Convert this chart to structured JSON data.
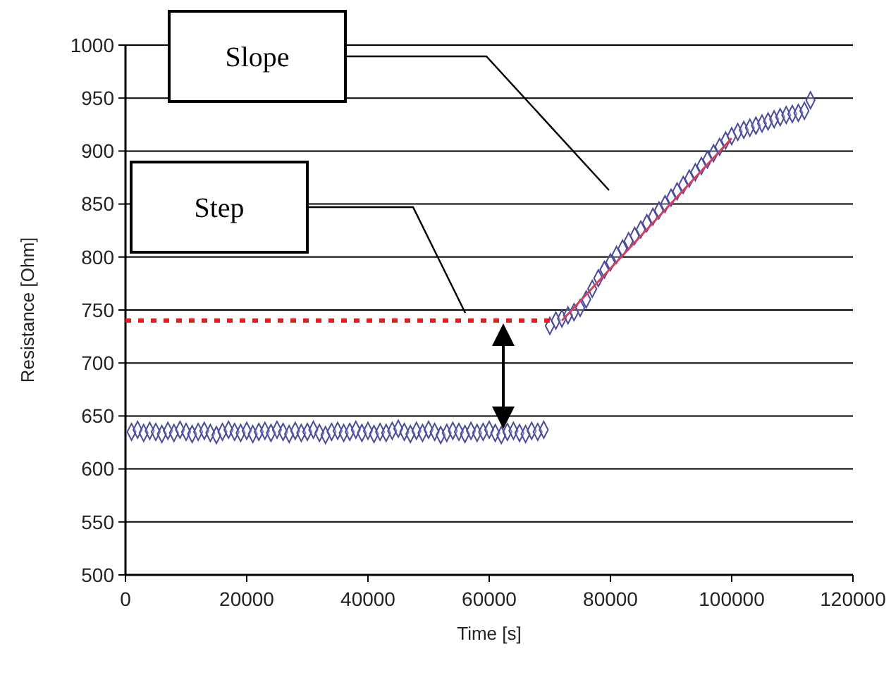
{
  "chart_data": {
    "type": "scatter",
    "xlabel": "Time [s]",
    "ylabel": "Resistance [Ohm]",
    "xlim": [
      0,
      120000
    ],
    "xticks": [
      0,
      20000,
      40000,
      60000,
      80000,
      100000,
      120000
    ],
    "ylim": [
      500,
      1000
    ],
    "yticks": [
      500,
      550,
      600,
      650,
      700,
      750,
      800,
      850,
      900,
      950,
      1000
    ],
    "grid": "y",
    "series": [
      {
        "color": "#4b4b9c",
        "marker": "diamond",
        "x": [
          1000,
          2000,
          3000,
          4000,
          5000,
          6000,
          7000,
          8000,
          9000,
          10000,
          11000,
          12000,
          13000,
          14000,
          15000,
          16000,
          17000,
          18000,
          19000,
          20000,
          21000,
          22000,
          23000,
          24000,
          25000,
          26000,
          27000,
          28000,
          29000,
          30000,
          31000,
          32000,
          33000,
          34000,
          35000,
          36000,
          37000,
          38000,
          39000,
          40000,
          41000,
          42000,
          43000,
          44000,
          45000,
          46000,
          47000,
          48000,
          49000,
          50000,
          51000,
          52000,
          53000,
          54000,
          55000,
          56000,
          57000,
          58000,
          59000,
          60000,
          61000,
          62000,
          63000,
          64000,
          65000,
          66000,
          67000,
          68000,
          69000,
          70000,
          71000,
          72000,
          73000,
          74000,
          75000,
          76000,
          77000,
          78000,
          79000,
          80000,
          81000,
          82000,
          83000,
          84000,
          85000,
          86000,
          87000,
          88000,
          89000,
          90000,
          91000,
          92000,
          93000,
          94000,
          95000,
          96000,
          97000,
          98000,
          99000,
          100000,
          101000,
          102000,
          103000,
          104000,
          105000,
          106000,
          107000,
          108000,
          109000,
          110000,
          111000,
          112000,
          113000
        ],
        "values": [
          635,
          637,
          634,
          636,
          635,
          633,
          636,
          634,
          637,
          635,
          633,
          635,
          636,
          634,
          632,
          635,
          637,
          635,
          634,
          636,
          633,
          635,
          636,
          634,
          637,
          635,
          633,
          636,
          634,
          635,
          637,
          634,
          632,
          635,
          636,
          634,
          635,
          637,
          634,
          636,
          633,
          635,
          634,
          636,
          638,
          635,
          633,
          636,
          634,
          637,
          635,
          632,
          634,
          636,
          635,
          633,
          636,
          634,
          635,
          637,
          634,
          632,
          635,
          636,
          634,
          633,
          636,
          635,
          637,
          735,
          740,
          742,
          745,
          748,
          752,
          760,
          770,
          780,
          788,
          795,
          802,
          808,
          815,
          820,
          826,
          832,
          838,
          844,
          850,
          856,
          862,
          868,
          874,
          880,
          886,
          892,
          898,
          904,
          910,
          914,
          918,
          920,
          922,
          924,
          926,
          928,
          930,
          932,
          934,
          935,
          936,
          938,
          948
        ]
      },
      {
        "type": "line",
        "color": "#e02020",
        "line_style": "dotted",
        "x": [
          0,
          70000
        ],
        "values": [
          740,
          740
        ]
      },
      {
        "type": "line",
        "color": "#d04060",
        "line_style": "solid",
        "x": [
          72000,
          100000
        ],
        "values": [
          740,
          912
        ]
      }
    ],
    "annotations": [
      "Slope",
      "Step"
    ]
  }
}
